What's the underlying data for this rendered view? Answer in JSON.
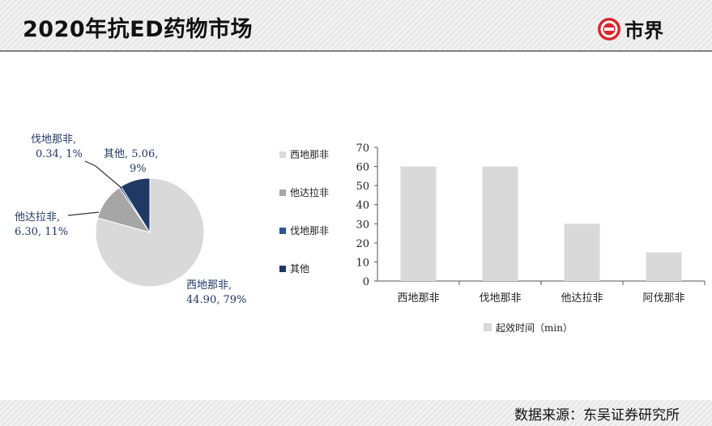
{
  "header": {
    "title": "2020年抗ED药物市场"
  },
  "logo": {
    "text": "市界",
    "brand_color": "#d9262c"
  },
  "footer": {
    "source": "数据来源：东吴证券研究所"
  },
  "colors": {
    "grey_light": "#d9d9d9",
    "grey_mid": "#a6a6a6",
    "blue_mid": "#2e5597",
    "navy": "#1f3864"
  },
  "chart_data": [
    {
      "type": "pie",
      "slices": [
        {
          "name": "西地那非",
          "value": 44.9,
          "percent": 79,
          "label_line1": "西地那非,",
          "label_line2": "44.90, 79%",
          "color": "#d9d9d9"
        },
        {
          "name": "他达拉非",
          "value": 6.3,
          "percent": 11,
          "label_line1": "他达拉非,",
          "label_line2": "6.30, 11%",
          "color": "#a6a6a6"
        },
        {
          "name": "伐地那非",
          "value": 0.34,
          "percent": 1,
          "label_line1": "伐地那非,",
          "label_line2": "0.34, 1%",
          "color": "#2e5597"
        },
        {
          "name": "其他",
          "value": 5.06,
          "percent": 9,
          "label_line1": "其他, 5.06,",
          "label_line2": "9%",
          "color": "#1f3864"
        }
      ],
      "legend": {
        "position": "right",
        "items": [
          "西地那非",
          "他达拉非",
          "伐地那非",
          "其他"
        ]
      }
    },
    {
      "type": "bar",
      "categories": [
        "西地那非",
        "伐地那非",
        "他达拉非",
        "阿伐那非"
      ],
      "values": [
        60,
        60,
        30,
        15
      ],
      "ylim": [
        0,
        70
      ],
      "yticks": [
        0,
        10,
        20,
        30,
        40,
        50,
        60,
        70
      ],
      "legend": {
        "position": "bottom",
        "items": [
          "起效时间（min）"
        ]
      },
      "bar_color": "#d9d9d9"
    }
  ]
}
